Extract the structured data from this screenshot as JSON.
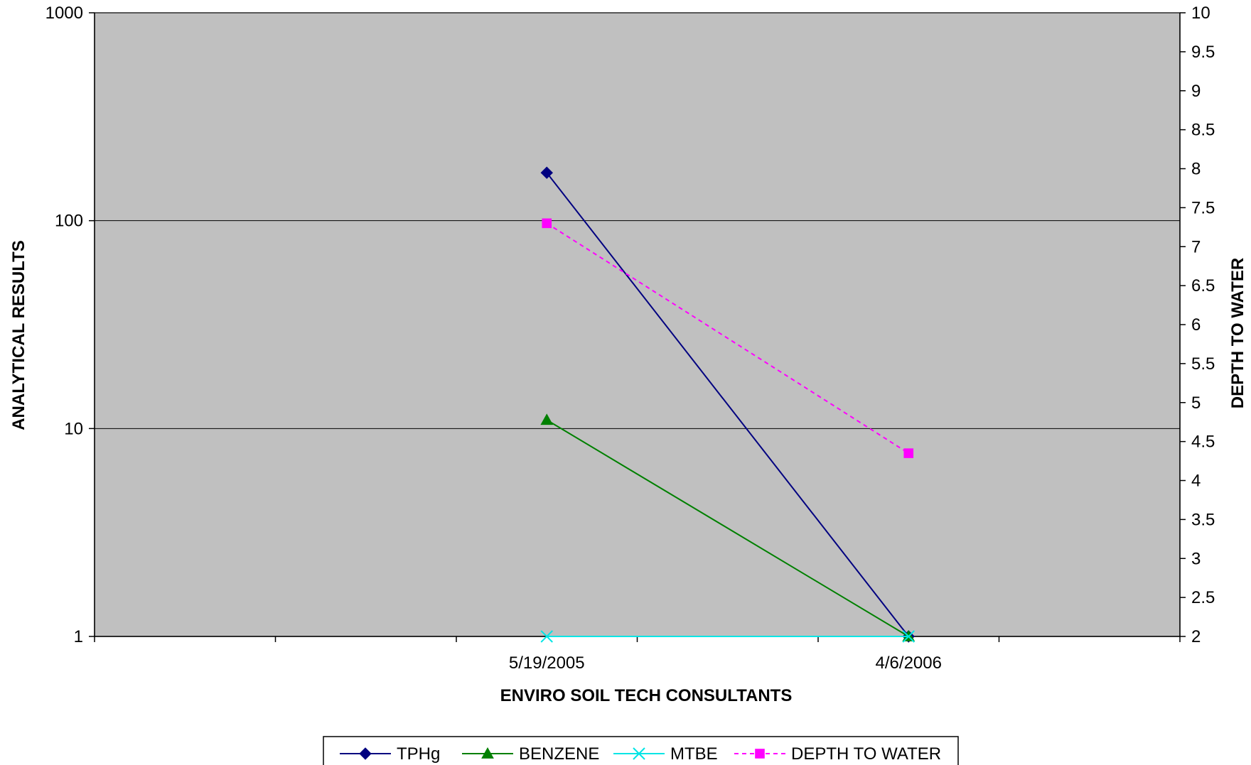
{
  "chart_data": {
    "type": "line",
    "title": "",
    "xlabel": "ENVIRO SOIL TECH CONSULTANTS",
    "ylabel": "ANALYTICAL RESULTS",
    "y2label": "DEPTH TO WATER",
    "categories": [
      "",
      "",
      "5/19/2005",
      "",
      "4/6/2006",
      ""
    ],
    "y_scale": "log",
    "ylim": [
      1,
      1000
    ],
    "y_ticks": [
      1,
      10,
      100,
      1000
    ],
    "y2lim": [
      2,
      10
    ],
    "y2_ticks": [
      2,
      2.5,
      3,
      3.5,
      4,
      4.5,
      5,
      5.5,
      6,
      6.5,
      7,
      7.5,
      8,
      8.5,
      9,
      9.5,
      10
    ],
    "grid": true,
    "legend_position": "bottom",
    "colors": {
      "plot_bg": "#c0c0c0",
      "grid": "#000000"
    },
    "series": [
      {
        "name": "TPHg",
        "axis": "left",
        "color": "#000080",
        "marker": "diamond",
        "dash": false,
        "values": [
          null,
          null,
          170,
          null,
          1,
          null
        ]
      },
      {
        "name": "BENZENE",
        "axis": "left",
        "color": "#008000",
        "marker": "triangle",
        "dash": false,
        "values": [
          null,
          null,
          11,
          null,
          1,
          null
        ]
      },
      {
        "name": "MTBE",
        "axis": "left",
        "color": "#00e5e5",
        "marker": "x",
        "dash": false,
        "values": [
          null,
          null,
          1,
          null,
          1,
          null
        ]
      },
      {
        "name": "DEPTH TO WATER",
        "axis": "right",
        "color": "#ff00ff",
        "marker": "square",
        "dash": true,
        "values": [
          null,
          null,
          7.3,
          null,
          4.35,
          null
        ]
      }
    ]
  }
}
